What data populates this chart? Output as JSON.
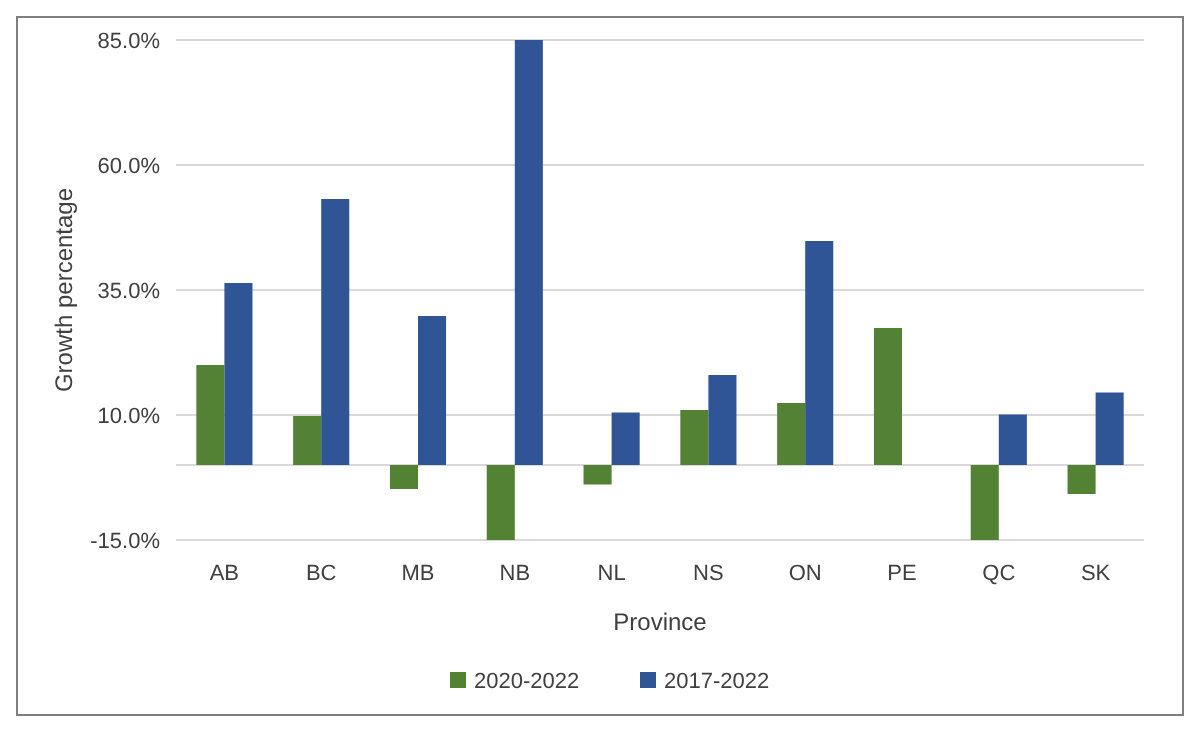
{
  "chart_data": {
    "type": "bar",
    "xlabel": "Province",
    "ylabel": "Growth percentage",
    "categories": [
      "AB",
      "BC",
      "MB",
      "NB",
      "NL",
      "NS",
      "ON",
      "PE",
      "QC",
      "SK"
    ],
    "series": [
      {
        "name": "2020-2022",
        "color": "#548235",
        "values": [
          20.0,
          9.8,
          -4.8,
          -15,
          -3.9,
          11.0,
          12.4,
          27.4,
          -15,
          -5.8
        ]
      },
      {
        "name": "2017-2022",
        "color": "#2f5597",
        "values": [
          36.4,
          53.2,
          29.8,
          85,
          10.5,
          18.0,
          44.8,
          null,
          10.1,
          14.5
        ]
      }
    ],
    "ylim": [
      -15,
      85
    ],
    "yticks": [
      {
        "value": -15,
        "label": "-15.0%"
      },
      {
        "value": 10,
        "label": "10.0%"
      },
      {
        "value": 35,
        "label": "35.0%"
      },
      {
        "value": 60,
        "label": "60.0%"
      },
      {
        "value": 85,
        "label": "85.0%"
      }
    ],
    "grid": "y",
    "legend": "bottom"
  }
}
